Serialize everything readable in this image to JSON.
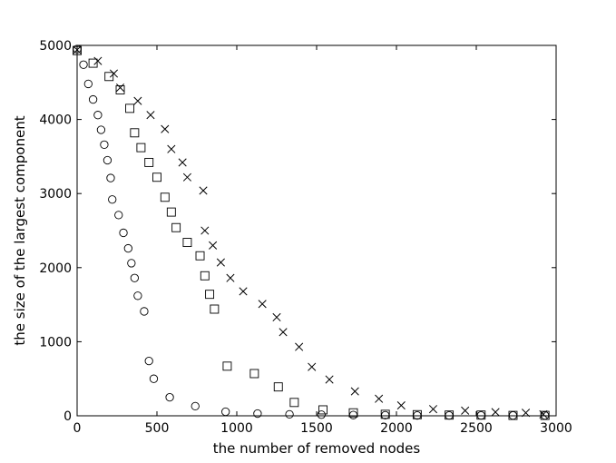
{
  "chart_data": {
    "type": "scatter",
    "title": "",
    "xlabel": "the number of removed nodes",
    "ylabel": "the size of the largest component",
    "xlim": [
      0,
      3000
    ],
    "ylim": [
      0,
      5000
    ],
    "xticks": [
      0,
      500,
      1000,
      1500,
      2000,
      2500,
      3000
    ],
    "yticks": [
      0,
      1000,
      2000,
      3000,
      4000,
      5000
    ],
    "grid": false,
    "legend": "none",
    "series": [
      {
        "marker": "circle",
        "points": [
          [
            0,
            4950
          ],
          [
            40,
            4740
          ],
          [
            70,
            4480
          ],
          [
            100,
            4270
          ],
          [
            130,
            4060
          ],
          [
            150,
            3860
          ],
          [
            170,
            3660
          ],
          [
            190,
            3450
          ],
          [
            210,
            3210
          ],
          [
            220,
            2920
          ],
          [
            260,
            2710
          ],
          [
            290,
            2470
          ],
          [
            320,
            2260
          ],
          [
            340,
            2060
          ],
          [
            360,
            1860
          ],
          [
            380,
            1620
          ],
          [
            420,
            1410
          ],
          [
            450,
            740
          ],
          [
            480,
            500
          ],
          [
            580,
            250
          ],
          [
            740,
            130
          ],
          [
            930,
            55
          ],
          [
            1130,
            30
          ],
          [
            1330,
            20
          ],
          [
            1530,
            15
          ],
          [
            1730,
            10
          ],
          [
            1930,
            8
          ],
          [
            2130,
            5
          ],
          [
            2330,
            5
          ],
          [
            2530,
            5
          ],
          [
            2730,
            5
          ],
          [
            2930,
            5
          ]
        ]
      },
      {
        "marker": "square",
        "points": [
          [
            0,
            4930
          ],
          [
            100,
            4760
          ],
          [
            200,
            4580
          ],
          [
            270,
            4400
          ],
          [
            330,
            4150
          ],
          [
            360,
            3820
          ],
          [
            400,
            3620
          ],
          [
            450,
            3420
          ],
          [
            500,
            3220
          ],
          [
            550,
            2950
          ],
          [
            590,
            2750
          ],
          [
            620,
            2540
          ],
          [
            690,
            2340
          ],
          [
            770,
            2160
          ],
          [
            800,
            1890
          ],
          [
            830,
            1640
          ],
          [
            860,
            1440
          ],
          [
            940,
            670
          ],
          [
            1110,
            570
          ],
          [
            1260,
            390
          ],
          [
            1360,
            180
          ],
          [
            1540,
            80
          ],
          [
            1730,
            40
          ],
          [
            1930,
            20
          ],
          [
            2130,
            15
          ],
          [
            2330,
            10
          ],
          [
            2530,
            10
          ],
          [
            2730,
            5
          ],
          [
            2930,
            5
          ]
        ]
      },
      {
        "marker": "x",
        "points": [
          [
            0,
            4940
          ],
          [
            130,
            4790
          ],
          [
            230,
            4620
          ],
          [
            270,
            4430
          ],
          [
            380,
            4250
          ],
          [
            460,
            4060
          ],
          [
            550,
            3870
          ],
          [
            590,
            3600
          ],
          [
            660,
            3420
          ],
          [
            690,
            3220
          ],
          [
            790,
            3040
          ],
          [
            800,
            2500
          ],
          [
            850,
            2300
          ],
          [
            900,
            2070
          ],
          [
            960,
            1860
          ],
          [
            1040,
            1680
          ],
          [
            1160,
            1510
          ],
          [
            1250,
            1330
          ],
          [
            1290,
            1130
          ],
          [
            1390,
            930
          ],
          [
            1470,
            660
          ],
          [
            1580,
            490
          ],
          [
            1740,
            330
          ],
          [
            1890,
            230
          ],
          [
            2030,
            140
          ],
          [
            2230,
            90
          ],
          [
            2430,
            70
          ],
          [
            2620,
            50
          ],
          [
            2810,
            40
          ],
          [
            2920,
            20
          ]
        ]
      }
    ]
  }
}
